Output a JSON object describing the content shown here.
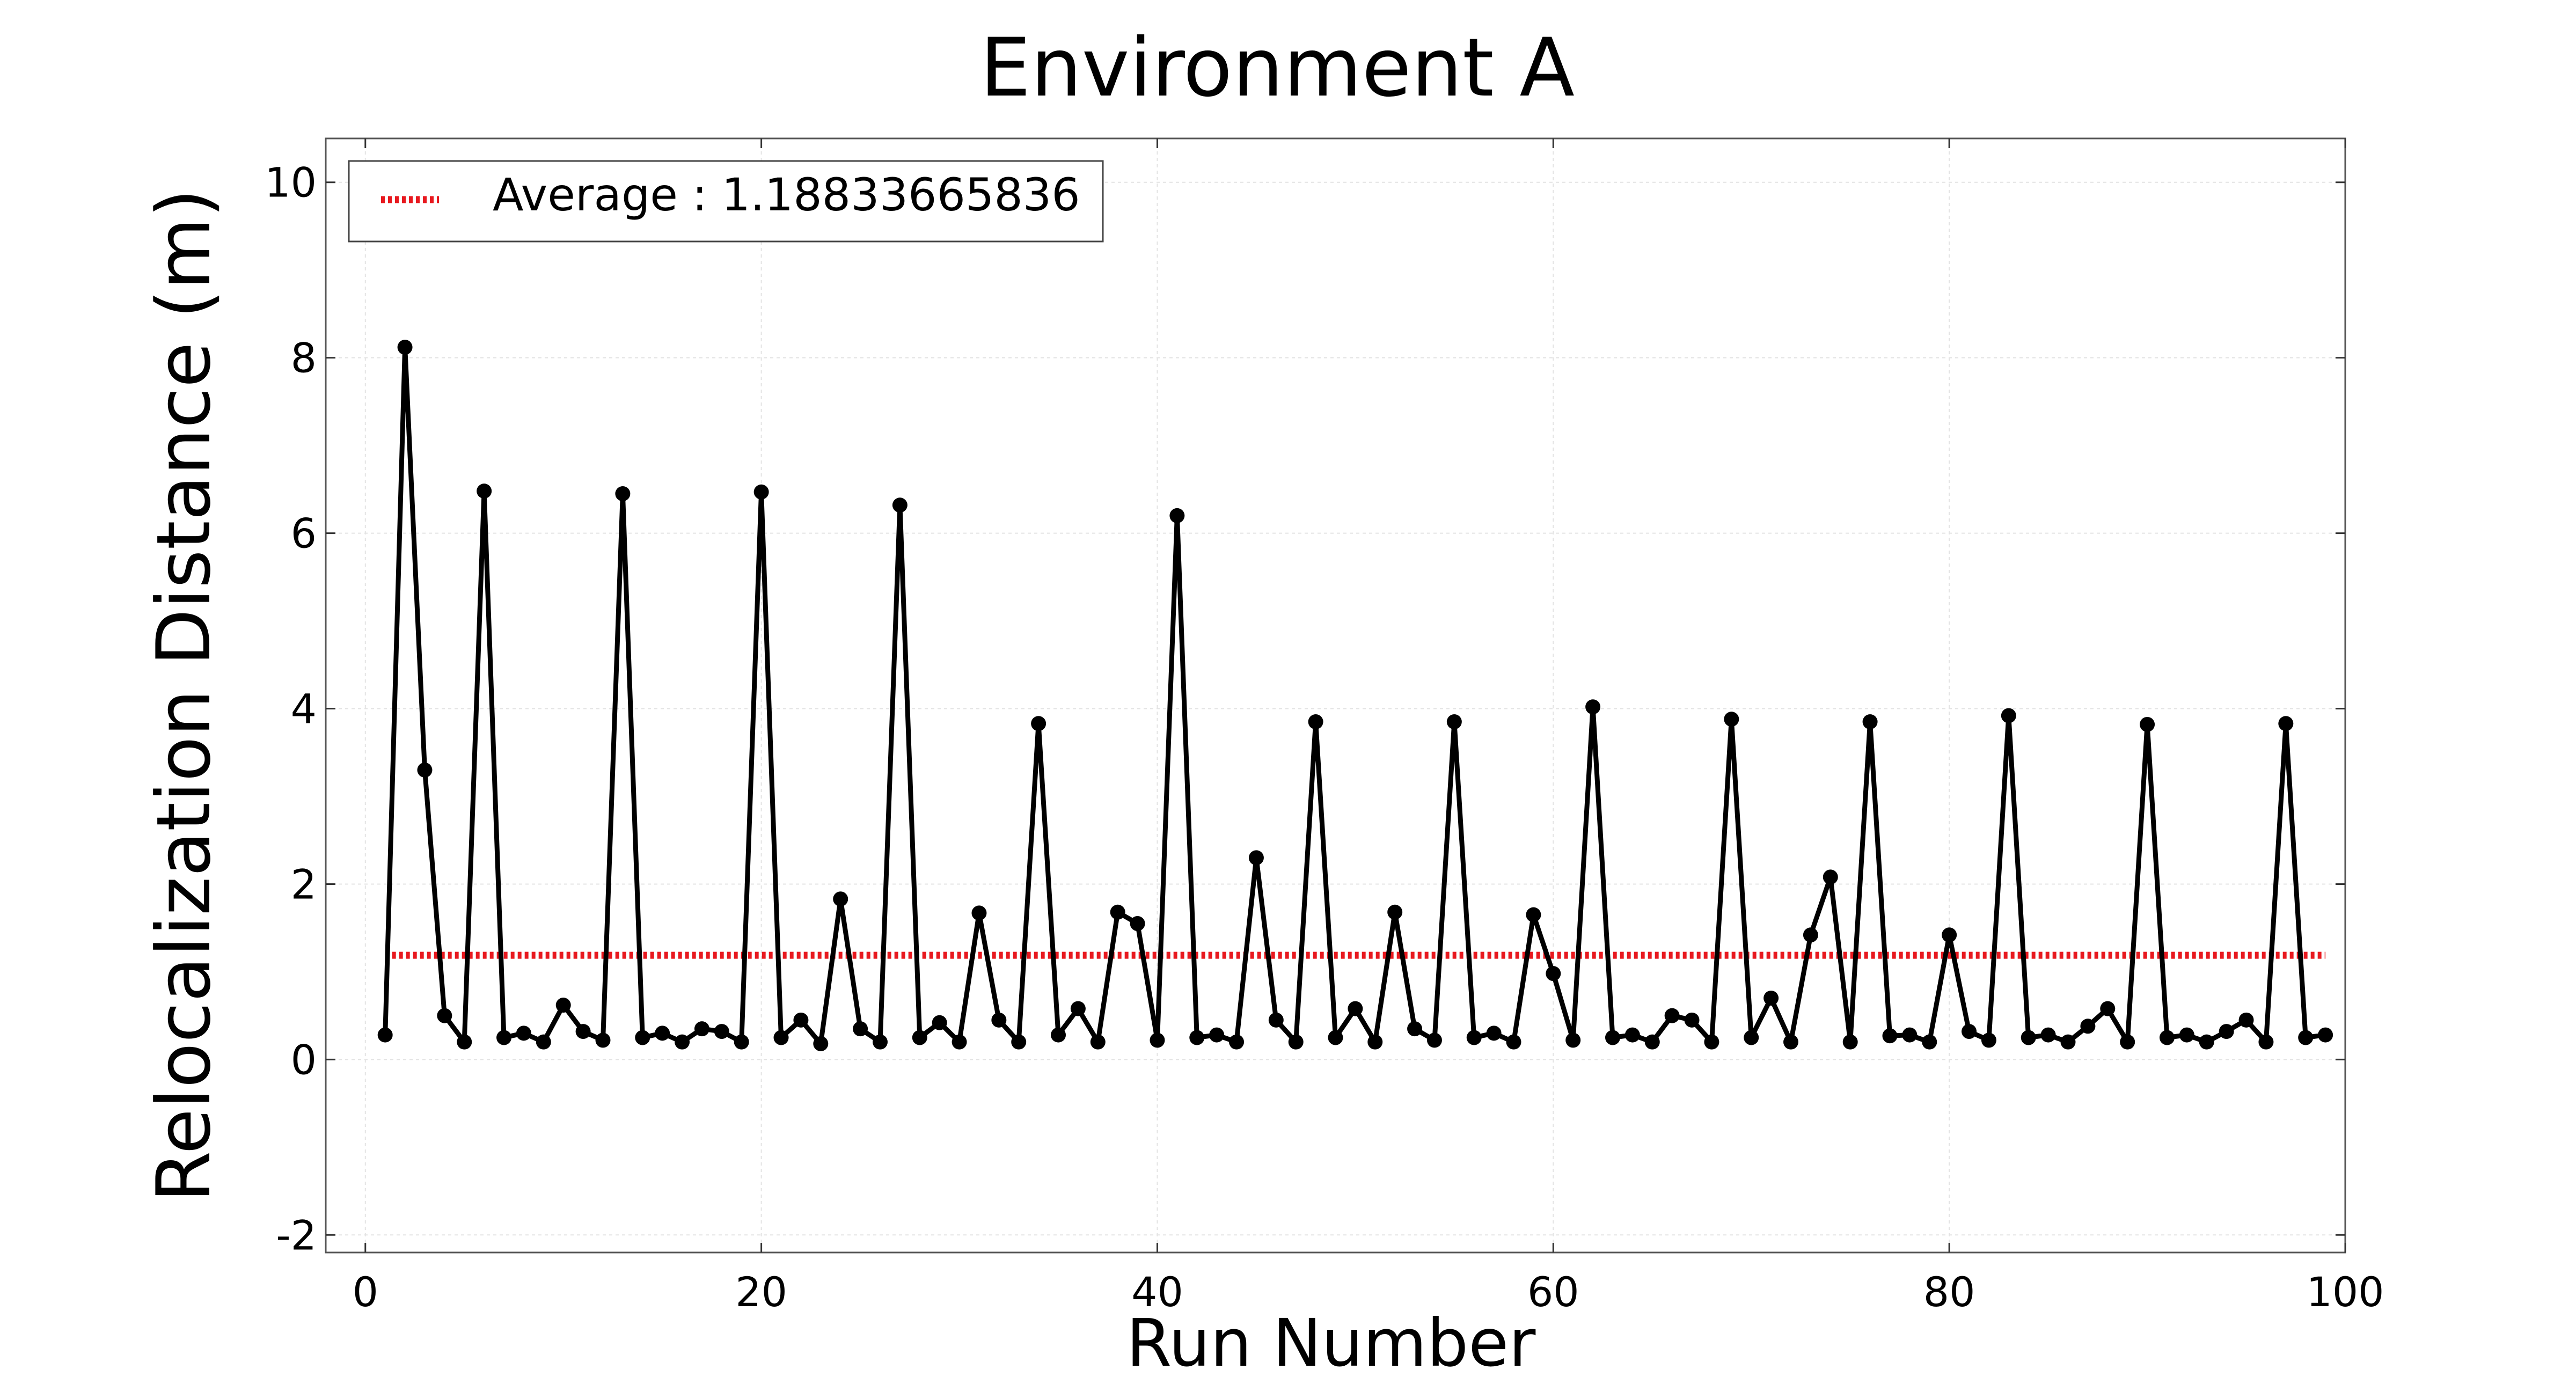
{
  "chart_data": {
    "type": "line",
    "title": "Environment A",
    "xlabel": "Run Number",
    "ylabel": "Relocalization Distance (m)",
    "xlim": [
      -2,
      100
    ],
    "ylim": [
      -2.2,
      10.5
    ],
    "xticks": [
      0,
      20,
      40,
      60,
      80,
      100
    ],
    "yticks": [
      -2,
      0,
      2,
      4,
      6,
      8,
      10
    ],
    "grid": true,
    "legend_position": "top-left",
    "series": [
      {
        "name": "",
        "style": "line-with-markers",
        "color": "#000000",
        "x": [
          1,
          2,
          3,
          4,
          5,
          6,
          7,
          8,
          9,
          10,
          11,
          12,
          13,
          14,
          15,
          16,
          17,
          18,
          19,
          20,
          21,
          22,
          23,
          24,
          25,
          26,
          27,
          28,
          29,
          30,
          31,
          32,
          33,
          34,
          35,
          36,
          37,
          38,
          39,
          40,
          41,
          42,
          43,
          44,
          45,
          46,
          47,
          48,
          49,
          50,
          51,
          52,
          53,
          54,
          55,
          56,
          57,
          58,
          59,
          60,
          61,
          62,
          63,
          64,
          65,
          66,
          67,
          68,
          69,
          70,
          71,
          72,
          73,
          74,
          75,
          76,
          77,
          78,
          79,
          80,
          81,
          82,
          83,
          84,
          85,
          86,
          87,
          88,
          89,
          90,
          91,
          92,
          93,
          94,
          95,
          96,
          97,
          98,
          99
        ],
        "y": [
          0.28,
          8.12,
          3.3,
          0.5,
          0.2,
          6.48,
          0.25,
          0.3,
          0.2,
          0.62,
          0.32,
          0.22,
          6.45,
          0.25,
          0.3,
          0.2,
          0.35,
          0.32,
          0.2,
          6.47,
          0.25,
          0.45,
          0.18,
          1.83,
          0.35,
          0.2,
          6.32,
          0.25,
          0.42,
          0.2,
          1.67,
          0.45,
          0.2,
          3.83,
          0.28,
          0.58,
          0.2,
          1.68,
          1.55,
          0.22,
          6.2,
          0.25,
          0.28,
          0.2,
          2.3,
          0.45,
          0.2,
          3.85,
          0.25,
          0.58,
          0.2,
          1.68,
          0.35,
          0.22,
          3.85,
          0.25,
          0.3,
          0.2,
          1.65,
          0.98,
          0.22,
          4.02,
          0.25,
          0.28,
          0.2,
          0.5,
          0.45,
          0.2,
          3.88,
          0.25,
          0.7,
          0.2,
          1.42,
          2.08,
          0.2,
          3.85,
          0.27,
          0.28,
          0.2,
          1.42,
          0.32,
          0.22,
          3.92,
          0.25,
          0.28,
          0.2,
          0.38,
          0.58,
          0.2,
          3.82,
          0.25,
          0.28,
          0.2,
          0.32,
          0.45,
          0.2,
          3.83,
          0.25,
          0.28
        ]
      },
      {
        "name": "Average : 1.18833665836",
        "style": "dotted",
        "color": "#e8191f",
        "x": [
          1,
          99
        ],
        "y": [
          1.18833665836,
          1.18833665836
        ]
      }
    ]
  }
}
